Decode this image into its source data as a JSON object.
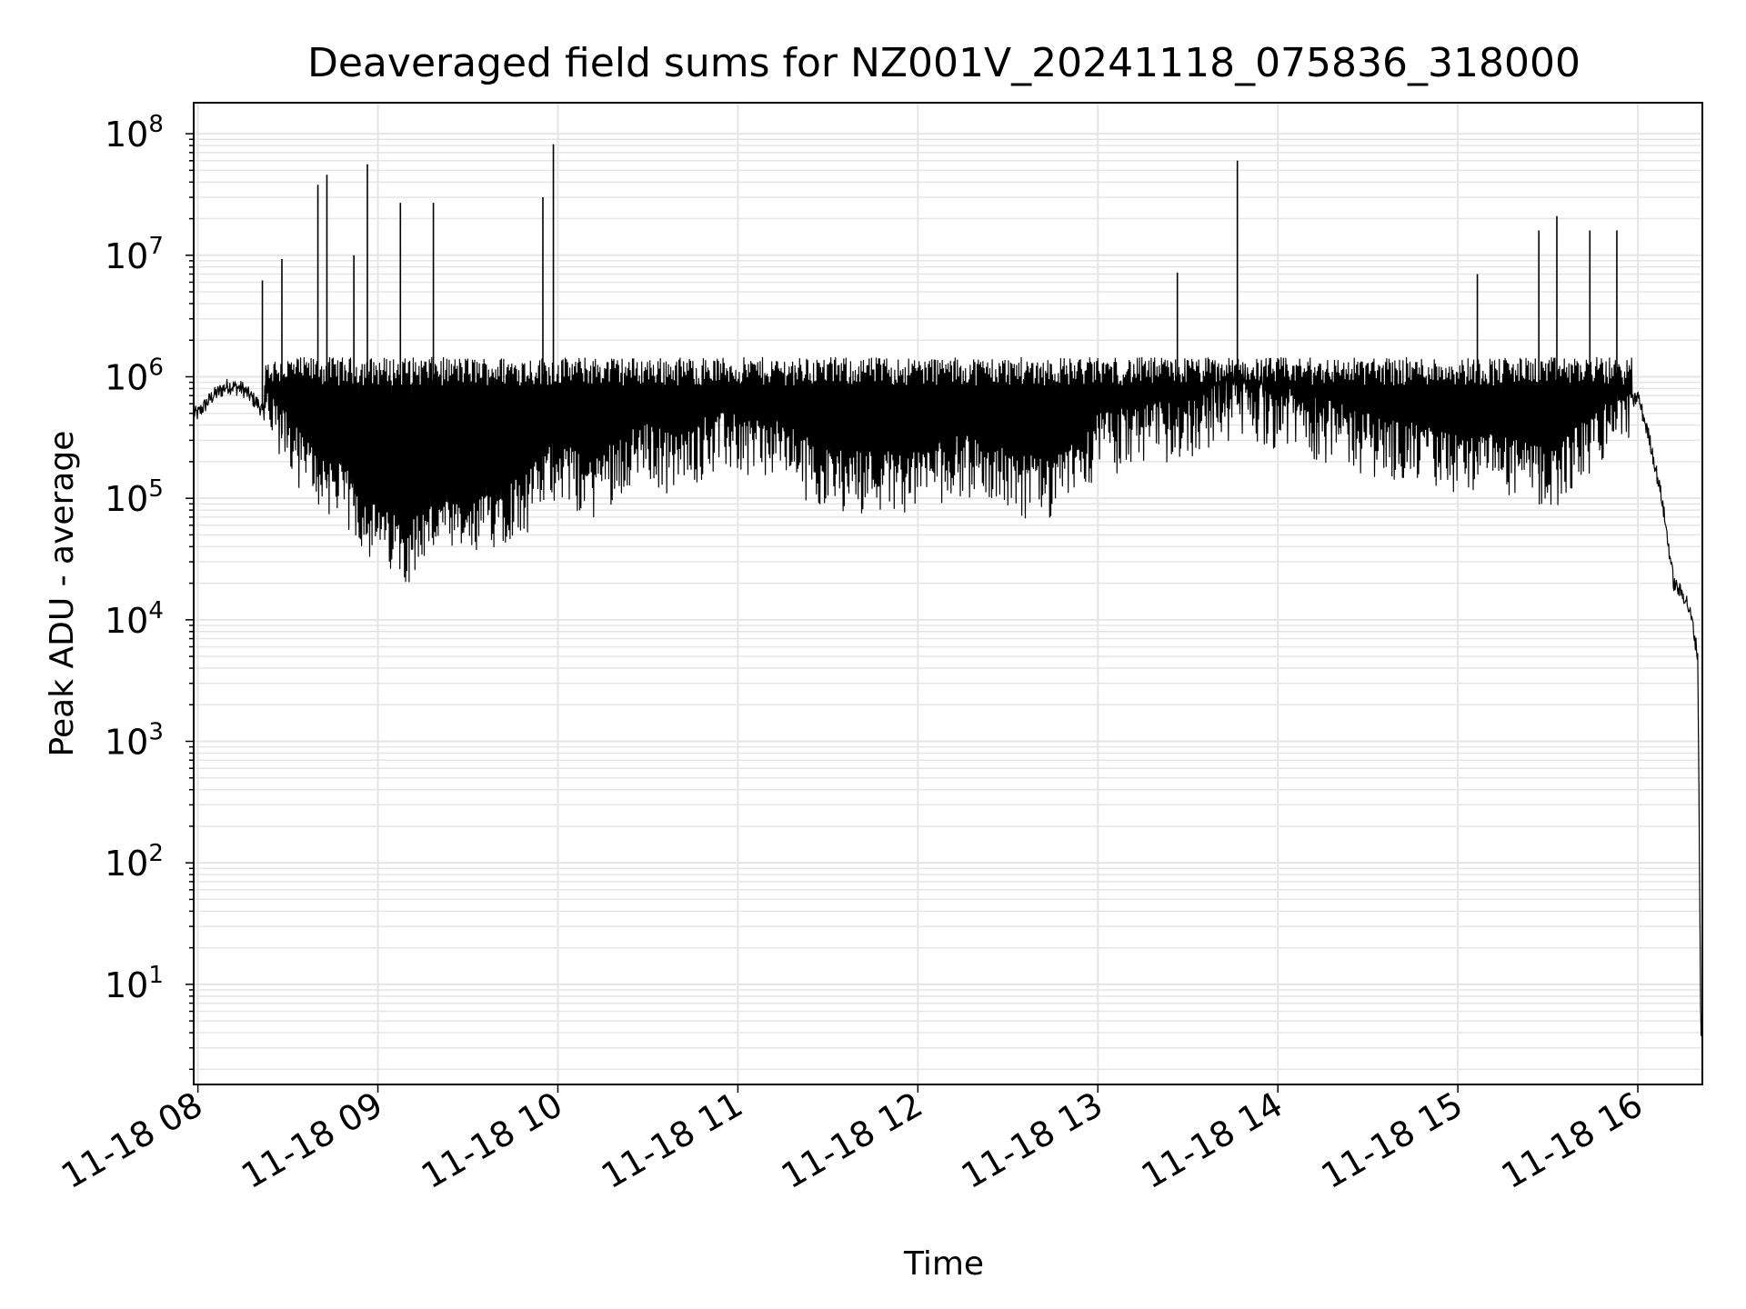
{
  "chart_data": {
    "type": "line",
    "title": "Deaveraged field sums for NZ001V_20241118_075836_318000",
    "xlabel": "Time",
    "ylabel": "Peak ADU - average",
    "yscale": "log",
    "xlim": [
      "2024-11-18T07:58:36",
      "2024-11-18T16:21:30"
    ],
    "ylim": [
      1.5,
      180000000
    ],
    "x_ticks": [
      "11-18 08",
      "11-18 09",
      "11-18 10",
      "11-18 11",
      "11-18 12",
      "11-18 13",
      "11-18 14",
      "11-18 15",
      "11-18 16"
    ],
    "y_ticks": [
      {
        "value": 10,
        "base": "10",
        "exp": "1"
      },
      {
        "value": 100,
        "base": "10",
        "exp": "2"
      },
      {
        "value": 1000,
        "base": "10",
        "exp": "3"
      },
      {
        "value": 10000,
        "base": "10",
        "exp": "4"
      },
      {
        "value": 100000,
        "base": "10",
        "exp": "5"
      },
      {
        "value": 1000000,
        "base": "10",
        "exp": "6"
      },
      {
        "value": 10000000,
        "base": "10",
        "exp": "7"
      },
      {
        "value": 100000000,
        "base": "10",
        "exp": "8"
      }
    ],
    "grid": true,
    "line_color": "#000000",
    "grid_color": "#e5e5e5",
    "series": [
      {
        "x": [
          "2024-11-18T08:00",
          "2024-11-18T08:05",
          "2024-11-18T08:10",
          "2024-11-18T08:15",
          "2024-11-18T08:20",
          "2024-11-18T08:25",
          "2024-11-18T08:30",
          "2024-11-18T08:35",
          "2024-11-18T08:40",
          "2024-11-18T08:45",
          "2024-11-18T08:50",
          "2024-11-18T08:55",
          "2024-11-18T09:00",
          "2024-11-18T09:10",
          "2024-11-18T09:20",
          "2024-11-18T09:30",
          "2024-11-18T09:40",
          "2024-11-18T09:50",
          "2024-11-18T10:00",
          "2024-11-18T10:10",
          "2024-11-18T10:20",
          "2024-11-18T10:30",
          "2024-11-18T10:40",
          "2024-11-18T10:50",
          "2024-11-18T11:00",
          "2024-11-18T11:15",
          "2024-11-18T11:30",
          "2024-11-18T11:45",
          "2024-11-18T12:00",
          "2024-11-18T12:15",
          "2024-11-18T12:30",
          "2024-11-18T12:45",
          "2024-11-18T13:00",
          "2024-11-18T13:15",
          "2024-11-18T13:30",
          "2024-11-18T13:45",
          "2024-11-18T14:00",
          "2024-11-18T14:15",
          "2024-11-18T14:30",
          "2024-11-18T14:45",
          "2024-11-18T15:00",
          "2024-11-18T15:15",
          "2024-11-18T15:30",
          "2024-11-18T15:45",
          "2024-11-18T15:55",
          "2024-11-18T16:00",
          "2024-11-18T16:04",
          "2024-11-18T16:08",
          "2024-11-18T16:12",
          "2024-11-18T16:16",
          "2024-11-18T16:18",
          "2024-11-18T16:20",
          "2024-11-18T16:21"
        ],
        "y": [
          500000,
          700000,
          850000,
          800000,
          600000,
          400000,
          300000,
          200000,
          150000,
          130000,
          100000,
          70000,
          50000,
          40000,
          60000,
          50000,
          80000,
          100000,
          200000,
          120000,
          200000,
          250000,
          200000,
          300000,
          300000,
          250000,
          150000,
          150000,
          150000,
          200000,
          150000,
          120000,
          300000,
          350000,
          400000,
          600000,
          500000,
          400000,
          300000,
          250000,
          200000,
          200000,
          150000,
          300000,
          500000,
          700000,
          300000,
          100000,
          20000,
          15000,
          10000,
          5000,
          4
        ]
      }
    ],
    "spikes": [
      {
        "x": "2024-11-18T08:21:30",
        "y": 6200000
      },
      {
        "x": "2024-11-18T08:28:00",
        "y": 9300000
      },
      {
        "x": "2024-11-18T08:40:00",
        "y": 38000000
      },
      {
        "x": "2024-11-18T08:43:00",
        "y": 46000000
      },
      {
        "x": "2024-11-18T08:52:00",
        "y": 10000000
      },
      {
        "x": "2024-11-18T08:56:30",
        "y": 56000000
      },
      {
        "x": "2024-11-18T09:07:30",
        "y": 27000000
      },
      {
        "x": "2024-11-18T09:18:30",
        "y": 27000000
      },
      {
        "x": "2024-11-18T09:55:00",
        "y": 30000000
      },
      {
        "x": "2024-11-18T09:58:30",
        "y": 82000000
      },
      {
        "x": "2024-11-18T13:26:30",
        "y": 7200000
      },
      {
        "x": "2024-11-18T13:46:30",
        "y": 60000000
      },
      {
        "x": "2024-11-18T15:06:30",
        "y": 7000000
      },
      {
        "x": "2024-11-18T15:27:00",
        "y": 16000000
      },
      {
        "x": "2024-11-18T15:33:00",
        "y": 21000000
      },
      {
        "x": "2024-11-18T15:44:00",
        "y": 16000000
      },
      {
        "x": "2024-11-18T15:53:00",
        "y": 16000000
      }
    ]
  }
}
